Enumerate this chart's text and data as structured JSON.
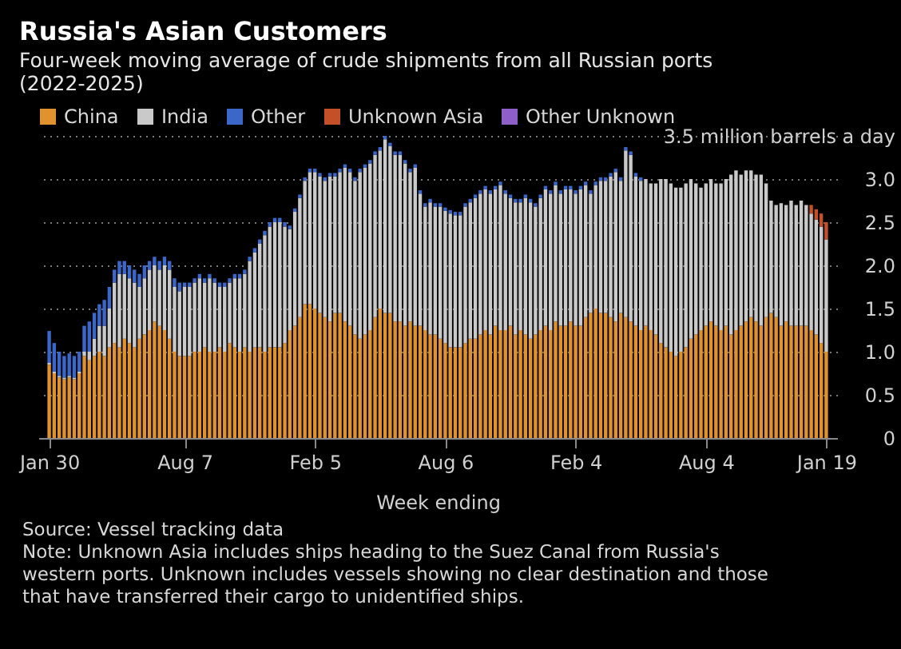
{
  "chart_data": {
    "type": "bar",
    "stacked": true,
    "title": "Russia's Asian Customers",
    "subtitle": "Four-week moving average of crude shipments from all Russian ports (2022-2025)",
    "xlabel": "Week ending",
    "annotations": [
      "Source: Vessel tracking data",
      "Note: Unknown Asia includes ships heading to the Suez Canal from Russia's western ports. Unknown includes vessels showing no clear destination and those that have transferred their cargo to unidentified ships."
    ],
    "x": [
      "2022-01-30",
      "2022-02-06",
      "2022-02-13",
      "2022-02-20",
      "2022-02-27",
      "2022-03-06",
      "2022-03-13",
      "2022-03-20",
      "2022-03-27",
      "2022-04-03",
      "2022-04-10",
      "2022-04-17",
      "2022-04-24",
      "2022-05-01",
      "2022-05-08",
      "2022-05-15",
      "2022-05-22",
      "2022-05-29",
      "2022-06-05",
      "2022-06-12",
      "2022-06-19",
      "2022-06-26",
      "2022-07-03",
      "2022-07-10",
      "2022-07-17",
      "2022-07-24",
      "2022-07-31",
      "2022-08-07",
      "2022-08-14",
      "2022-08-21",
      "2022-08-28",
      "2022-09-04",
      "2022-09-11",
      "2022-09-18",
      "2022-09-25",
      "2022-10-02",
      "2022-10-09",
      "2022-10-16",
      "2022-10-23",
      "2022-10-30",
      "2022-11-06",
      "2022-11-13",
      "2022-11-20",
      "2022-11-27",
      "2022-12-04",
      "2022-12-11",
      "2022-12-18",
      "2022-12-25",
      "2023-01-01",
      "2023-01-08",
      "2023-01-15",
      "2023-01-22",
      "2023-01-29",
      "2023-02-05",
      "2023-02-12",
      "2023-02-19",
      "2023-02-26",
      "2023-03-05",
      "2023-03-12",
      "2023-03-19",
      "2023-03-26",
      "2023-04-02",
      "2023-04-09",
      "2023-04-16",
      "2023-04-23",
      "2023-04-30",
      "2023-05-07",
      "2023-05-14",
      "2023-05-21",
      "2023-05-28",
      "2023-06-04",
      "2023-06-11",
      "2023-06-18",
      "2023-06-25",
      "2023-07-02",
      "2023-07-09",
      "2023-07-16",
      "2023-07-23",
      "2023-07-30",
      "2023-08-06",
      "2023-08-13",
      "2023-08-20",
      "2023-08-27",
      "2023-09-03",
      "2023-09-10",
      "2023-09-17",
      "2023-09-24",
      "2023-10-01",
      "2023-10-08",
      "2023-10-15",
      "2023-10-22",
      "2023-10-29",
      "2023-11-05",
      "2023-11-12",
      "2023-11-19",
      "2023-11-26",
      "2023-12-03",
      "2023-12-10",
      "2023-12-17",
      "2023-12-24",
      "2023-12-31",
      "2024-01-07",
      "2024-01-14",
      "2024-01-21",
      "2024-01-28",
      "2024-02-04",
      "2024-02-11",
      "2024-02-18",
      "2024-02-25",
      "2024-03-03",
      "2024-03-10",
      "2024-03-17",
      "2024-03-24",
      "2024-03-31",
      "2024-04-07",
      "2024-04-14",
      "2024-04-21",
      "2024-04-28",
      "2024-05-05",
      "2024-05-12",
      "2024-05-19",
      "2024-05-26",
      "2024-06-02",
      "2024-06-09",
      "2024-06-16",
      "2024-06-23",
      "2024-06-30",
      "2024-07-07",
      "2024-07-14",
      "2024-07-21",
      "2024-07-28",
      "2024-08-04",
      "2024-08-11",
      "2024-08-18",
      "2024-08-25",
      "2024-09-01",
      "2024-09-08",
      "2024-09-15",
      "2024-09-22",
      "2024-09-29",
      "2024-10-06",
      "2024-10-13",
      "2024-10-20",
      "2024-10-27",
      "2024-11-03",
      "2024-11-10",
      "2024-11-17",
      "2024-11-24",
      "2024-12-01",
      "2024-12-08",
      "2024-12-15",
      "2024-12-22",
      "2024-12-29",
      "2025-01-05",
      "2025-01-12",
      "2025-01-19"
    ],
    "series": [
      {
        "name": "China",
        "color": "#e0922f",
        "values": [
          0.85,
          0.75,
          0.7,
          0.68,
          0.7,
          0.68,
          0.75,
          0.95,
          0.9,
          0.95,
          1.0,
          0.95,
          1.05,
          1.1,
          1.05,
          1.15,
          1.1,
          1.05,
          1.15,
          1.2,
          1.25,
          1.35,
          1.3,
          1.25,
          1.15,
          1.0,
          0.95,
          0.95,
          0.95,
          1.0,
          1.0,
          1.05,
          1.0,
          1.0,
          1.05,
          1.0,
          1.1,
          1.05,
          1.0,
          1.05,
          1.0,
          1.05,
          1.05,
          1.0,
          1.05,
          1.05,
          1.05,
          1.1,
          1.25,
          1.3,
          1.4,
          1.55,
          1.55,
          1.5,
          1.45,
          1.4,
          1.35,
          1.45,
          1.45,
          1.35,
          1.3,
          1.2,
          1.15,
          1.2,
          1.25,
          1.4,
          1.5,
          1.45,
          1.45,
          1.35,
          1.35,
          1.3,
          1.35,
          1.3,
          1.3,
          1.25,
          1.2,
          1.2,
          1.15,
          1.1,
          1.05,
          1.05,
          1.05,
          1.1,
          1.15,
          1.15,
          1.2,
          1.25,
          1.2,
          1.3,
          1.25,
          1.25,
          1.3,
          1.2,
          1.25,
          1.2,
          1.15,
          1.2,
          1.25,
          1.3,
          1.25,
          1.35,
          1.3,
          1.3,
          1.35,
          1.3,
          1.3,
          1.4,
          1.45,
          1.5,
          1.45,
          1.45,
          1.4,
          1.35,
          1.45,
          1.4,
          1.35,
          1.3,
          1.25,
          1.3,
          1.25,
          1.2,
          1.1,
          1.05,
          1.0,
          0.95,
          1.0,
          1.05,
          1.15,
          1.2,
          1.25,
          1.3,
          1.35,
          1.3,
          1.25,
          1.3,
          1.2,
          1.25,
          1.3,
          1.35,
          1.4,
          1.35,
          1.3,
          1.4,
          1.45,
          1.4,
          1.3,
          1.35,
          1.3,
          1.3,
          1.3,
          1.3,
          1.25,
          1.2,
          1.1,
          1.0
        ]
      },
      {
        "name": "India",
        "color": "#c9c9c9",
        "values": [
          0.02,
          0.02,
          0.02,
          0.02,
          0.02,
          0.02,
          0.02,
          0.05,
          0.1,
          0.2,
          0.3,
          0.35,
          0.45,
          0.7,
          0.85,
          0.75,
          0.75,
          0.75,
          0.6,
          0.65,
          0.7,
          0.65,
          0.65,
          0.75,
          0.8,
          0.75,
          0.75,
          0.8,
          0.8,
          0.8,
          0.85,
          0.75,
          0.85,
          0.8,
          0.7,
          0.75,
          0.7,
          0.8,
          0.85,
          0.85,
          1.05,
          1.1,
          1.2,
          1.35,
          1.4,
          1.45,
          1.45,
          1.35,
          1.17,
          1.32,
          1.38,
          1.43,
          1.53,
          1.58,
          1.58,
          1.58,
          1.68,
          1.58,
          1.63,
          1.78,
          1.78,
          1.78,
          1.93,
          1.93,
          1.93,
          1.88,
          1.83,
          2.01,
          1.93,
          1.93,
          1.93,
          1.88,
          1.73,
          1.83,
          1.53,
          1.43,
          1.53,
          1.48,
          1.53,
          1.53,
          1.55,
          1.53,
          1.53,
          1.58,
          1.58,
          1.63,
          1.63,
          1.63,
          1.63,
          1.58,
          1.68,
          1.58,
          1.48,
          1.53,
          1.48,
          1.58,
          1.58,
          1.48,
          1.53,
          1.58,
          1.58,
          1.58,
          1.53,
          1.58,
          1.53,
          1.53,
          1.58,
          1.53,
          1.38,
          1.43,
          1.53,
          1.53,
          1.63,
          1.73,
          1.53,
          1.93,
          1.93,
          1.73,
          1.73,
          1.7,
          1.7,
          1.75,
          1.9,
          1.95,
          1.95,
          1.95,
          1.9,
          1.9,
          1.85,
          1.75,
          1.65,
          1.65,
          1.65,
          1.65,
          1.7,
          1.7,
          1.85,
          1.85,
          1.75,
          1.75,
          1.7,
          1.7,
          1.75,
          1.55,
          1.3,
          1.3,
          1.42,
          1.35,
          1.45,
          1.4,
          1.45,
          1.4,
          1.35,
          1.33,
          1.35,
          1.3
        ]
      },
      {
        "name": "Other",
        "color": "#3b67c9",
        "values": [
          0.37,
          0.33,
          0.28,
          0.25,
          0.26,
          0.25,
          0.23,
          0.3,
          0.35,
          0.3,
          0.25,
          0.3,
          0.25,
          0.15,
          0.15,
          0.15,
          0.15,
          0.15,
          0.15,
          0.15,
          0.1,
          0.1,
          0.1,
          0.1,
          0.1,
          0.1,
          0.1,
          0.05,
          0.05,
          0.05,
          0.05,
          0.05,
          0.05,
          0.05,
          0.05,
          0.05,
          0.05,
          0.05,
          0.05,
          0.05,
          0.05,
          0.05,
          0.05,
          0.05,
          0.05,
          0.05,
          0.05,
          0.05,
          0.04,
          0.04,
          0.04,
          0.04,
          0.04,
          0.04,
          0.04,
          0.04,
          0.04,
          0.04,
          0.04,
          0.04,
          0.04,
          0.04,
          0.04,
          0.04,
          0.04,
          0.04,
          0.04,
          0.04,
          0.04,
          0.04,
          0.04,
          0.04,
          0.04,
          0.04,
          0.04,
          0.04,
          0.04,
          0.04,
          0.04,
          0.04,
          0.04,
          0.04,
          0.04,
          0.04,
          0.04,
          0.04,
          0.04,
          0.04,
          0.04,
          0.04,
          0.04,
          0.04,
          0.04,
          0.04,
          0.04,
          0.04,
          0.04,
          0.04,
          0.04,
          0.04,
          0.04,
          0.04,
          0.04,
          0.04,
          0.04,
          0.04,
          0.04,
          0.04,
          0.04,
          0.04,
          0.04,
          0.04,
          0.04,
          0.04,
          0.04,
          0.04,
          0.04,
          0.04,
          0.04,
          null,
          null,
          null,
          null,
          null,
          null,
          null,
          null,
          null,
          null,
          null,
          null,
          null,
          null,
          null,
          null,
          null,
          null,
          null,
          null,
          null,
          null,
          null,
          null,
          null,
          null,
          null,
          null,
          null,
          null,
          null,
          null,
          null,
          null,
          null,
          null,
          null
        ]
      },
      {
        "name": "Unknown Asia",
        "color": "#c4502a",
        "values": [
          null,
          null,
          null,
          null,
          null,
          null,
          null,
          null,
          null,
          null,
          null,
          null,
          null,
          null,
          null,
          null,
          null,
          null,
          null,
          null,
          null,
          null,
          null,
          null,
          null,
          null,
          null,
          null,
          null,
          null,
          null,
          null,
          null,
          null,
          null,
          null,
          null,
          null,
          null,
          null,
          null,
          null,
          null,
          null,
          null,
          null,
          null,
          null,
          null,
          null,
          null,
          null,
          null,
          null,
          null,
          null,
          null,
          null,
          null,
          null,
          null,
          null,
          null,
          null,
          null,
          null,
          null,
          null,
          null,
          null,
          null,
          null,
          null,
          null,
          null,
          null,
          null,
          null,
          null,
          null,
          null,
          null,
          null,
          null,
          null,
          null,
          null,
          null,
          null,
          null,
          null,
          null,
          null,
          null,
          null,
          null,
          null,
          null,
          null,
          null,
          null,
          null,
          null,
          null,
          null,
          null,
          null,
          null,
          null,
          null,
          null,
          null,
          null,
          null,
          null,
          null,
          null,
          null,
          null,
          null,
          null,
          null,
          null,
          null,
          null,
          null,
          null,
          null,
          null,
          null,
          null,
          null,
          null,
          null,
          null,
          null,
          null,
          null,
          null,
          null,
          null,
          null,
          null,
          null,
          null,
          null,
          null,
          null,
          null,
          null,
          null,
          null,
          0.1,
          0.12,
          0.15,
          0.2
        ]
      },
      {
        "name": "Other Unknown",
        "color": "#8e5ec9",
        "values": [
          null,
          null,
          null,
          null,
          null,
          null,
          null,
          null,
          null,
          null,
          null,
          null,
          null,
          null,
          null,
          null,
          null,
          null,
          null,
          null,
          null,
          null,
          null,
          null,
          null,
          null,
          null,
          null,
          null,
          null,
          null,
          null,
          null,
          null,
          null,
          null,
          null,
          null,
          null,
          null,
          null,
          null,
          null,
          null,
          null,
          null,
          null,
          null,
          null,
          null,
          null,
          null,
          null,
          null,
          null,
          null,
          null,
          null,
          null,
          null,
          null,
          null,
          null,
          null,
          null,
          null,
          null,
          null,
          null,
          null,
          null,
          null,
          null,
          null,
          null,
          null,
          null,
          null,
          null,
          null,
          null,
          null,
          null,
          null,
          null,
          null,
          null,
          null,
          null,
          null,
          null,
          null,
          null,
          null,
          null,
          null,
          null,
          null,
          null,
          null,
          null,
          null,
          null,
          null,
          null,
          null,
          null,
          null,
          null,
          null,
          null,
          null,
          null,
          null,
          null,
          null,
          null,
          null,
          null,
          null,
          null,
          null,
          null,
          null,
          null,
          null,
          null,
          null,
          null,
          null,
          null,
          null,
          null,
          null,
          null,
          null,
          null,
          null,
          null,
          null,
          null,
          null,
          null,
          null,
          null,
          null,
          null,
          null,
          null,
          null,
          null,
          null,
          null,
          null,
          null,
          null
        ]
      }
    ],
    "xlim": [
      "2022-01-26",
      "2025-01-23"
    ],
    "xticks": [
      {
        "value": "2022-01-30",
        "label": "Jan 30"
      },
      {
        "value": "2022-08-07",
        "label": "Aug 7"
      },
      {
        "value": "2023-02-05",
        "label": "Feb 5"
      },
      {
        "value": "2023-08-06",
        "label": "Aug 6"
      },
      {
        "value": "2024-02-04",
        "label": "Feb 4"
      },
      {
        "value": "2024-08-04",
        "label": "Aug 4"
      },
      {
        "value": "2025-01-19",
        "label": "Jan 19"
      }
    ],
    "ylim": [
      0,
      3.5
    ],
    "yticks": [
      0,
      0.5,
      {
        "value": 1,
        "label": "1.0"
      },
      1.5,
      {
        "value": 2,
        "label": "2.0"
      },
      2.5,
      {
        "value": 3,
        "label": "3.0"
      },
      {
        "value": 3.5,
        "label": "3.5 million barrels a day"
      }
    ],
    "grid": "y",
    "legend": "top left"
  }
}
